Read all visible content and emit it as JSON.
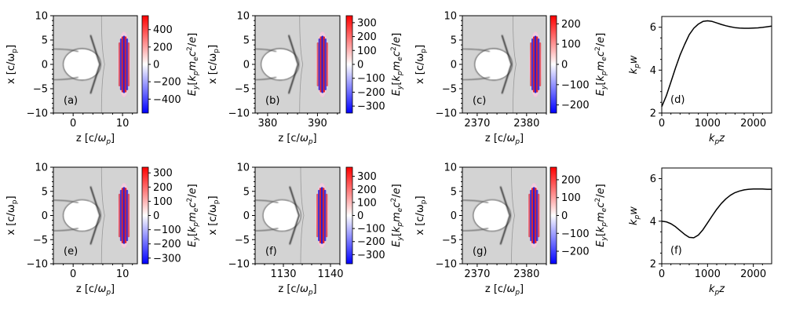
{
  "figure": {
    "xlabel_z": "z [c/ωp]",
    "ylabel_x": "x [c/ωp]",
    "colorbar_label": "Ey[kpmec²/e]"
  },
  "chart_data": [
    {
      "type": "heatmap",
      "panel": "(a)",
      "xlim": [
        -4,
        13
      ],
      "ylim": [
        -10,
        10
      ],
      "xticks": [
        0,
        10
      ],
      "yticks": [
        -10,
        -5,
        0,
        5,
        10
      ],
      "xlabel": "z [c/ωp]",
      "ylabel": "x [c/ωp]",
      "colorbar": {
        "label": "Ey [kp me c²/e]",
        "range": [
          -560,
          560
        ],
        "ticks": [
          -400,
          -200,
          0,
          200,
          400
        ]
      },
      "pulse_center_z": 10.3
    },
    {
      "type": "heatmap",
      "panel": "(b)",
      "xlim": [
        377.5,
        394.5
      ],
      "ylim": [
        -10,
        10
      ],
      "xticks": [
        380,
        390
      ],
      "yticks": [
        -10,
        -5,
        0,
        5,
        10
      ],
      "xlabel": "z [c/ωp]",
      "ylabel": "x [c/ωp]",
      "colorbar": {
        "label": "Ey [kp me c²/e]",
        "range": [
          -350,
          350
        ],
        "ticks": [
          -300,
          -200,
          -100,
          0,
          100,
          200,
          300
        ]
      },
      "pulse_center_z": 391.0
    },
    {
      "type": "heatmap",
      "panel": "(c)",
      "xlim": [
        2367,
        2384
      ],
      "ylim": [
        -10,
        10
      ],
      "xticks": [
        2370,
        2380
      ],
      "yticks": [
        -10,
        -5,
        0,
        5,
        10
      ],
      "xlabel": "z [c/ωp]",
      "ylabel": "x [c/ωp]",
      "colorbar": {
        "label": "Ey [kp me c²/e]",
        "range": [
          -240,
          240
        ],
        "ticks": [
          -200,
          -100,
          0,
          100,
          200
        ]
      },
      "pulse_center_z": 2381.8
    },
    {
      "type": "line",
      "panel": "(d)",
      "xlabel": "kpz",
      "ylabel": "kpw",
      "xlim": [
        0,
        2400
      ],
      "ylim": [
        2,
        6.5
      ],
      "xticks": [
        0,
        1000,
        2000
      ],
      "yticks": [
        2,
        4,
        6
      ],
      "series": [
        {
          "name": "kpw",
          "x": [
            0,
            100,
            200,
            300,
            400,
            500,
            600,
            700,
            800,
            900,
            1000,
            1100,
            1200,
            1300,
            1400,
            1500,
            1600,
            1700,
            1800,
            1900,
            2000,
            2100,
            2200,
            2300,
            2400
          ],
          "y": [
            2.3,
            2.8,
            3.45,
            4.1,
            4.7,
            5.2,
            5.65,
            5.95,
            6.15,
            6.27,
            6.3,
            6.27,
            6.2,
            6.13,
            6.07,
            6.02,
            5.98,
            5.96,
            5.95,
            5.95,
            5.96,
            5.97,
            5.99,
            6.02,
            6.05
          ]
        }
      ]
    },
    {
      "type": "heatmap",
      "panel": "(e)",
      "xlim": [
        -4,
        13
      ],
      "ylim": [
        -10,
        10
      ],
      "xticks": [
        0,
        10
      ],
      "yticks": [
        -10,
        -5,
        0,
        5,
        10
      ],
      "xlabel": "z [c/ωp]",
      "ylabel": "x [c/ωp]",
      "colorbar": {
        "label": "Ey [kp me c²/e]",
        "range": [
          -340,
          340
        ],
        "ticks": [
          -300,
          -200,
          -100,
          0,
          100,
          200,
          300
        ]
      },
      "pulse_center_z": 10.3
    },
    {
      "type": "heatmap",
      "panel": "(f)",
      "xlim": [
        1124,
        1142
      ],
      "ylim": [
        -10,
        10
      ],
      "xticks": [
        1130,
        1140
      ],
      "yticks": [
        -10,
        -5,
        0,
        5,
        10
      ],
      "xlabel": "z [c/ωp]",
      "ylabel": "x [c/ωp]",
      "colorbar": {
        "label": "Ey [kp me c²/e]",
        "range": [
          -370,
          370
        ],
        "ticks": [
          -300,
          -200,
          -100,
          0,
          100,
          200,
          300
        ]
      },
      "pulse_center_z": 1138.2
    },
    {
      "type": "heatmap",
      "panel": "(g)",
      "xlim": [
        2367,
        2384
      ],
      "ylim": [
        -10,
        10
      ],
      "xticks": [
        2370,
        2380
      ],
      "yticks": [
        -10,
        -5,
        0,
        5,
        10
      ],
      "xlabel": "z [c/ωp]",
      "ylabel": "x [c/ωp]",
      "colorbar": {
        "label": "Ey [kp me c²/e]",
        "range": [
          -270,
          270
        ],
        "ticks": [
          -200,
          -100,
          0,
          100,
          200
        ]
      },
      "pulse_center_z": 2381.5
    },
    {
      "type": "line",
      "panel": "(f)",
      "xlabel": "kpz",
      "ylabel": "kpw",
      "xlim": [
        0,
        2400
      ],
      "ylim": [
        2,
        6.5
      ],
      "xticks": [
        0,
        1000,
        2000
      ],
      "yticks": [
        2,
        4,
        6
      ],
      "series": [
        {
          "name": "kpw",
          "x": [
            0,
            100,
            200,
            300,
            400,
            500,
            600,
            700,
            800,
            900,
            1000,
            1100,
            1200,
            1300,
            1400,
            1500,
            1600,
            1700,
            1800,
            1900,
            2000,
            2100,
            2200,
            2300,
            2400
          ],
          "y": [
            4.0,
            3.97,
            3.88,
            3.74,
            3.56,
            3.38,
            3.24,
            3.22,
            3.35,
            3.6,
            3.92,
            4.25,
            4.56,
            4.83,
            5.05,
            5.22,
            5.34,
            5.42,
            5.47,
            5.5,
            5.51,
            5.51,
            5.51,
            5.5,
            5.5
          ]
        }
      ]
    }
  ]
}
